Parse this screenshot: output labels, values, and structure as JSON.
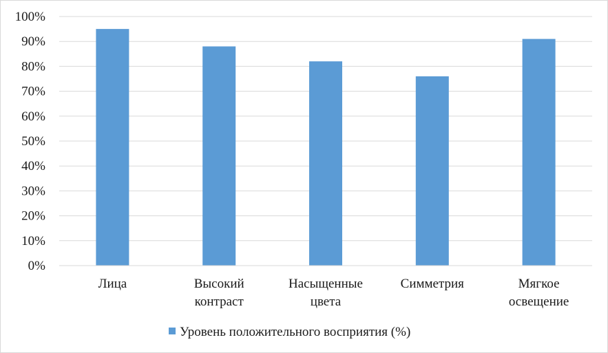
{
  "chart_data": {
    "type": "bar",
    "categories": [
      [
        "Лица"
      ],
      [
        "Высокий",
        "контраст"
      ],
      [
        "Насыщенные",
        "цвета"
      ],
      [
        "Симметрия"
      ],
      [
        "Мягкое",
        "освещение"
      ]
    ],
    "series": [
      {
        "name": "Уровень положительного восприятия (%)",
        "values": [
          95,
          88,
          82,
          76,
          91
        ],
        "color": "#5b9bd5"
      }
    ],
    "yticks": [
      "0%",
      "10%",
      "20%",
      "30%",
      "40%",
      "50%",
      "60%",
      "70%",
      "80%",
      "90%",
      "100%"
    ],
    "ylim": [
      0,
      100
    ],
    "grid": true,
    "legend_position": "bottom",
    "title": "",
    "xlabel": "",
    "ylabel": ""
  }
}
